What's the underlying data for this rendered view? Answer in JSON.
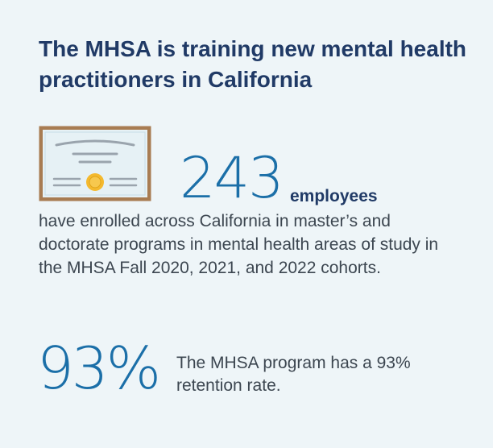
{
  "title": "The MHSA is training new mental health practitioners in California",
  "icon": "certificate-icon",
  "enrollment": {
    "number": "243",
    "unit": "employees",
    "description": "have enrolled across California in master’s and doctorate programs in mental health areas of study in the MHSA Fall 2020, 2021, and 2022 cohorts."
  },
  "retention": {
    "number": "93%",
    "description": "The MHSA program has a 93% retention rate."
  },
  "colors": {
    "background": "#eef5f8",
    "title": "#203a66",
    "accent": "#1b6fa8",
    "body_text": "#3c4650",
    "frame": "#a87c52",
    "seal": "#f4b92e"
  }
}
